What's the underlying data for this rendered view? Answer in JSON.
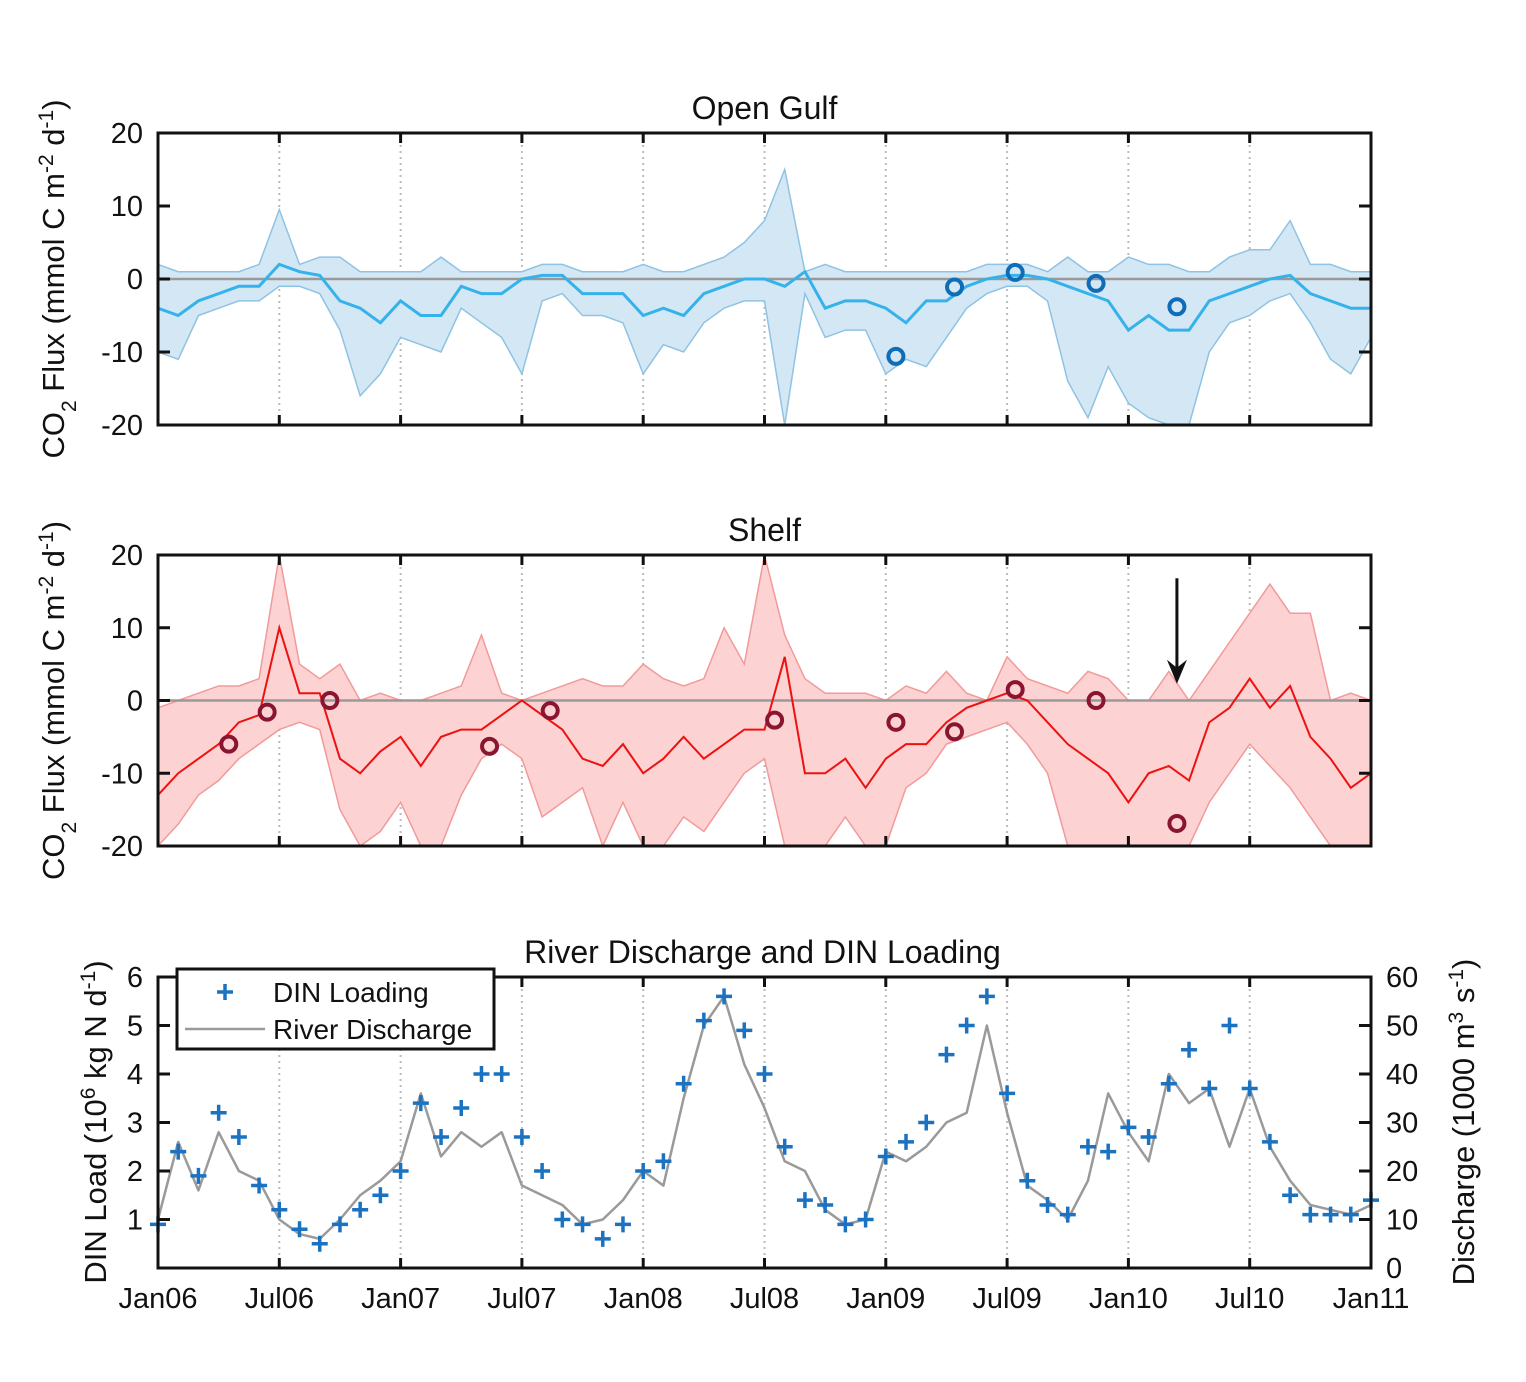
{
  "chart_data": [
    {
      "type": "area",
      "title": "Open Gulf",
      "ylabel": [
        {
          "t": "CO"
        },
        {
          "t": "2",
          "s": "sub"
        },
        {
          "t": " Flux (mmol C m"
        },
        {
          "t": "-2",
          "s": "sup"
        },
        {
          "t": " d"
        },
        {
          "t": "-1",
          "s": "sup"
        },
        {
          "t": ")"
        }
      ],
      "ylim": [
        -20,
        20
      ],
      "yticks": [
        "20",
        "10",
        "0",
        "-10",
        "-20"
      ],
      "ytick_values": [
        20,
        10,
        0,
        -10,
        -20
      ],
      "x_unit": "months since Jan06",
      "colors": {
        "mean": "#35b2ea",
        "band": "#d4e7f5",
        "band_edge": "#8fc3e3",
        "obs": "#0f6cb6"
      },
      "mean": [
        -4,
        -5,
        -3,
        -2,
        -1,
        -1,
        2,
        1,
        0.5,
        -3,
        -4,
        -6,
        -3,
        -5,
        -5,
        -1,
        -2,
        -2,
        0,
        0.5,
        0.5,
        -2,
        -2,
        -2,
        -5,
        -4,
        -5,
        -2,
        -1,
        0,
        0,
        -1,
        1,
        -4,
        -3,
        -3,
        -4,
        -6,
        -3,
        -3,
        -1,
        0,
        0.5,
        0.5,
        0,
        -1,
        -2,
        -3,
        -7,
        -5,
        -7,
        -7,
        -3,
        -2,
        -1,
        0,
        0.5,
        -2,
        -3,
        -4,
        -4
      ],
      "upper": [
        2,
        1,
        1,
        1,
        1,
        2,
        9.5,
        2,
        3,
        3,
        1,
        1,
        1,
        1,
        3,
        1,
        1,
        1,
        1,
        2,
        2,
        1,
        1,
        1,
        2,
        1,
        1,
        2,
        3,
        5,
        8,
        15,
        1,
        2,
        1,
        1,
        1,
        1,
        1,
        1,
        1,
        2,
        2,
        2,
        1,
        3,
        1,
        1,
        3,
        2,
        2,
        1,
        1,
        3,
        4,
        4,
        8,
        2,
        2,
        1,
        1
      ],
      "lower": [
        -10,
        -11,
        -5,
        -4,
        -3,
        -3,
        -1,
        -1,
        -2,
        -7,
        -16,
        -13,
        -8,
        -9,
        -10,
        -4,
        -6,
        -8,
        -13,
        -3,
        -2,
        -5,
        -5,
        -6,
        -13,
        -9,
        -10,
        -6,
        -4,
        -3,
        -3,
        -20,
        -2,
        -8,
        -7,
        -7,
        -13,
        -11,
        -12,
        -8,
        -4,
        -2,
        -1,
        -1,
        -3,
        -14,
        -19,
        -12,
        -17,
        -19,
        -20,
        -20,
        -10,
        -6,
        -5,
        -3,
        -2,
        -6,
        -11,
        -13,
        -8
      ],
      "observations": [
        {
          "month": 36.5,
          "value": -10.6
        },
        {
          "month": 39.4,
          "value": -1.1
        },
        {
          "month": 42.4,
          "value": 0.9
        },
        {
          "month": 46.4,
          "value": -0.6
        },
        {
          "month": 50.4,
          "value": -3.8
        }
      ]
    },
    {
      "type": "area",
      "title": "Shelf",
      "ylabel": [
        {
          "t": "CO"
        },
        {
          "t": "2",
          "s": "sub"
        },
        {
          "t": " Flux (mmol C m"
        },
        {
          "t": "-2",
          "s": "sup"
        },
        {
          "t": " d"
        },
        {
          "t": "-1",
          "s": "sup"
        },
        {
          "t": ")"
        }
      ],
      "ylim": [
        -20,
        20
      ],
      "yticks": [
        "20",
        "10",
        "0",
        "-10",
        "-20"
      ],
      "ytick_values": [
        20,
        10,
        0,
        -10,
        -20
      ],
      "x_unit": "months since Jan06",
      "colors": {
        "mean": "#ee1111",
        "band": "#fcd2d2",
        "band_edge": "#f29a9a",
        "obs": "#8a1530"
      },
      "mean": [
        -13,
        -10,
        -8,
        -6,
        -3,
        -2,
        10,
        1,
        1,
        -8,
        -10,
        -7,
        -5,
        -9,
        -5,
        -4,
        -4,
        -2,
        0,
        -2,
        -4,
        -8,
        -9,
        -6,
        -10,
        -8,
        -5,
        -8,
        -6,
        -4,
        -4,
        6,
        -10,
        -10,
        -8,
        -12,
        -8,
        -6,
        -6,
        -3,
        -1,
        0,
        1,
        0,
        -3,
        -6,
        -8,
        -10,
        -14,
        -10,
        -9,
        -11,
        -3,
        -1,
        3,
        -1,
        2,
        -5,
        -8,
        -12,
        -10
      ],
      "upper": [
        -1,
        0,
        1,
        2,
        2,
        3,
        25,
        5,
        3,
        5,
        0,
        1,
        0,
        0,
        1,
        2,
        9,
        1,
        0,
        1,
        2,
        3,
        2,
        2,
        5,
        3,
        2,
        3,
        10,
        5,
        25,
        9,
        3,
        1,
        1,
        1,
        0,
        2,
        1,
        4,
        1,
        0,
        6,
        3,
        2,
        1,
        4,
        3,
        0,
        0,
        4,
        0,
        4,
        8,
        12,
        16,
        12,
        12,
        0,
        1,
        0
      ],
      "lower": [
        -20,
        -17,
        -13,
        -11,
        -8,
        -6,
        -4,
        -3,
        -4,
        -15,
        -20,
        -18,
        -14,
        -20,
        -20,
        -13,
        -8,
        -6,
        -8,
        -16,
        -14,
        -12,
        -20,
        -14,
        -20,
        -20,
        -16,
        -18,
        -14,
        -10,
        -8,
        -20,
        -20,
        -20,
        -16,
        -20,
        -20,
        -12,
        -10,
        -6,
        -5,
        -4,
        -3,
        -6,
        -10,
        -20,
        -20,
        -20,
        -20,
        -20,
        -20,
        -20,
        -14,
        -10,
        -6,
        -9,
        -12,
        -16,
        -20,
        -20,
        -20
      ],
      "observations": [
        {
          "month": 3.5,
          "value": -6.0
        },
        {
          "month": 5.4,
          "value": -1.6
        },
        {
          "month": 8.5,
          "value": 0.0
        },
        {
          "month": 16.4,
          "value": -6.3
        },
        {
          "month": 19.4,
          "value": -1.4
        },
        {
          "month": 30.5,
          "value": -2.7
        },
        {
          "month": 36.5,
          "value": -3.0
        },
        {
          "month": 39.4,
          "value": -4.3
        },
        {
          "month": 42.4,
          "value": 1.5
        },
        {
          "month": 46.4,
          "value": 0.0
        },
        {
          "month": 50.4,
          "value": -16.9
        }
      ],
      "annotation": {
        "type": "arrow",
        "month": 50.4,
        "from": 16.8,
        "to": 2.3
      }
    },
    {
      "type": "line+scatter",
      "title": "River Discharge and DIN Loading",
      "ylabel_left": [
        {
          "t": "DIN Load (10"
        },
        {
          "t": "6",
          "s": "sup"
        },
        {
          "t": " kg N d"
        },
        {
          "t": "-1",
          "s": "sup"
        },
        {
          "t": ")"
        }
      ],
      "ylabel_right": [
        {
          "t": "Discharge (1000 m"
        },
        {
          "t": "3",
          "s": "sup"
        },
        {
          "t": " s"
        },
        {
          "t": "-1",
          "s": "sup"
        },
        {
          "t": ")"
        }
      ],
      "ylim_left": [
        0,
        6
      ],
      "ylim_right": [
        0,
        60
      ],
      "yticks_left": [
        "1",
        "2",
        "3",
        "4",
        "5",
        "6"
      ],
      "ytick_values_left": [
        1,
        2,
        3,
        4,
        5,
        6
      ],
      "yticks_right": [
        "0",
        "10",
        "20",
        "30",
        "40",
        "50",
        "60"
      ],
      "ytick_values_right": [
        0,
        10,
        20,
        30,
        40,
        50,
        60
      ],
      "x_unit": "months since Jan06",
      "colors": {
        "din": "#1a72c0",
        "discharge": "#9a9a9a"
      },
      "legend": {
        "position": "top-left",
        "entries": [
          "DIN Loading",
          "River Discharge"
        ]
      },
      "din_loading": [
        0.9,
        2.4,
        1.9,
        3.2,
        2.7,
        1.7,
        1.2,
        0.8,
        0.5,
        0.9,
        1.2,
        1.5,
        2.0,
        3.4,
        2.7,
        3.3,
        4.0,
        4.0,
        2.7,
        2.0,
        1.0,
        0.9,
        0.6,
        0.9,
        2.0,
        2.2,
        3.8,
        5.1,
        5.6,
        4.9,
        4.0,
        2.5,
        1.4,
        1.3,
        0.9,
        1.0,
        2.3,
        2.6,
        3.0,
        4.4,
        5.0,
        5.6,
        3.6,
        1.8,
        1.3,
        1.1,
        2.5,
        2.4,
        2.9,
        2.7,
        3.8,
        4.5,
        3.7,
        5.0,
        3.7,
        2.6,
        1.5,
        1.1,
        1.1,
        1.1,
        1.4
      ],
      "discharge": [
        10,
        26,
        16,
        28,
        20,
        18,
        10,
        7,
        6,
        10,
        15,
        18,
        22,
        36,
        23,
        28,
        25,
        28,
        17,
        15,
        13,
        9,
        10,
        14,
        20,
        17,
        35,
        50,
        56,
        42,
        33,
        22,
        20,
        12,
        9,
        10,
        24,
        22,
        25,
        30,
        32,
        50,
        32,
        17,
        14,
        10,
        18,
        36,
        28,
        22,
        40,
        34,
        37,
        25,
        37,
        25,
        18,
        13,
        12,
        11,
        13
      ]
    }
  ],
  "x_axis": {
    "tick_labels": [
      "Jan06",
      "Jul06",
      "Jan07",
      "Jul07",
      "Jan08",
      "Jul08",
      "Jan09",
      "Jul09",
      "Jan10",
      "Jul10",
      "Jan11"
    ],
    "tick_months": [
      0,
      6,
      12,
      18,
      24,
      30,
      36,
      42,
      48,
      54,
      60
    ],
    "range_months": [
      0,
      60
    ]
  }
}
